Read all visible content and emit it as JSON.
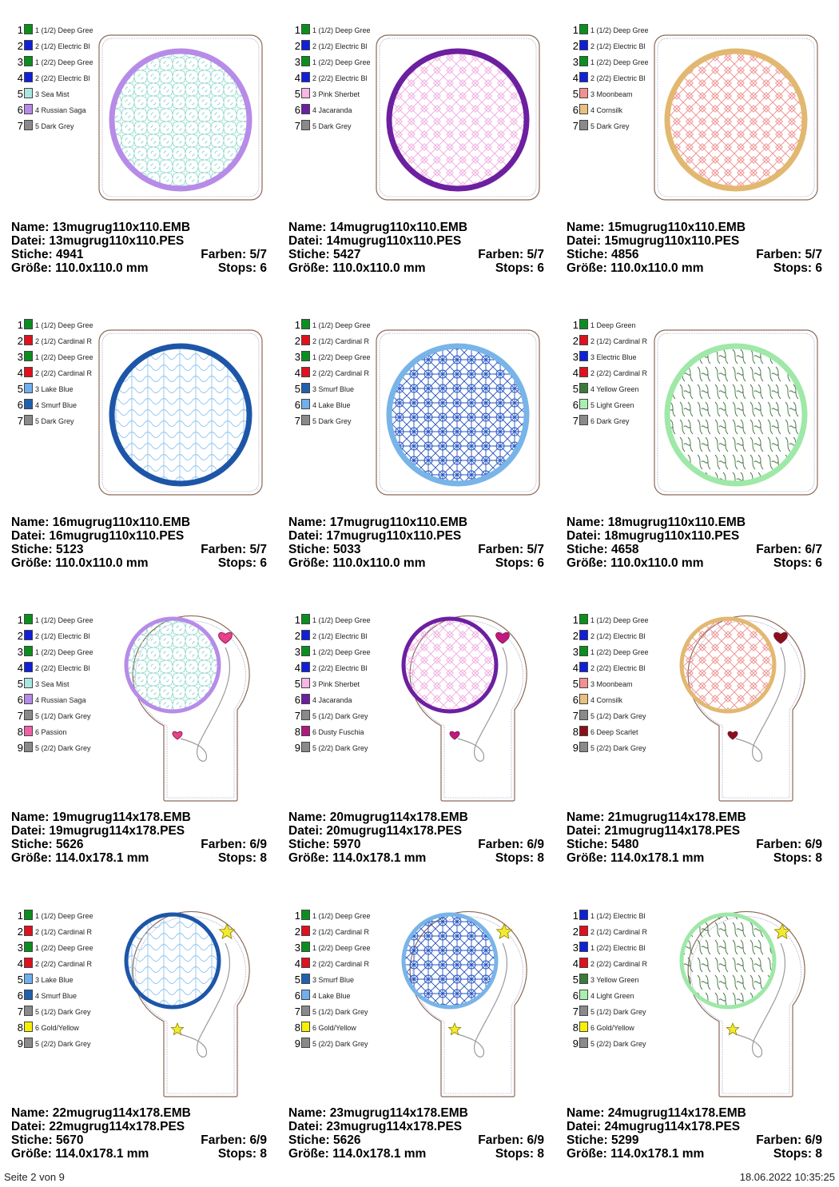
{
  "labels": {
    "name": "Name:",
    "file": "Datei:",
    "stitches": "Stiche:",
    "colors": "Farben:",
    "size": "Größe:",
    "stops": "Stops:"
  },
  "footer": {
    "page": "Seite 2 von 9",
    "datetime": "18.06.2022 10:35:25"
  },
  "designs": [
    {
      "name": "13mugrug110x110.EMB",
      "file": "13mugrug110x110.PES",
      "stitches": "4941",
      "colors": "5/7",
      "size": "110.0x110.0 mm",
      "stops": "6",
      "shape": "square",
      "pattern": "stars",
      "ring": "#b78be8",
      "fill": "#8fd8cc",
      "ornament": null,
      "thread_list": [
        {
          "name": "1 (1/2) Deep Gree",
          "color": "#0a8f1f"
        },
        {
          "name": "2 (1/2) Electric Bl",
          "color": "#1020d8"
        },
        {
          "name": "1 (2/2) Deep Gree",
          "color": "#0a8f1f"
        },
        {
          "name": "2 (2/2) Electric Bl",
          "color": "#1020d8"
        },
        {
          "name": "3 Sea Mist",
          "color": "#a8e8e0"
        },
        {
          "name": "4 Russian Saga",
          "color": "#b78be8"
        },
        {
          "name": "5 Dark Grey",
          "color": "#8a8a8a"
        }
      ]
    },
    {
      "name": "14mugrug110x110.EMB",
      "file": "14mugrug110x110.PES",
      "stitches": "5427",
      "colors": "5/7",
      "size": "110.0x110.0 mm",
      "stops": "6",
      "shape": "square",
      "pattern": "lattice",
      "ring": "#6c1fa0",
      "fill": "#f0a8e0",
      "ornament": null,
      "thread_list": [
        {
          "name": "1 (1/2) Deep Gree",
          "color": "#0a8f1f"
        },
        {
          "name": "2 (1/2) Electric Bl",
          "color": "#1020d8"
        },
        {
          "name": "1 (2/2) Deep Gree",
          "color": "#0a8f1f"
        },
        {
          "name": "2 (2/2) Electric Bl",
          "color": "#1020d8"
        },
        {
          "name": "3 Pink Sherbet",
          "color": "#f7b6e6"
        },
        {
          "name": "4 Jacaranda",
          "color": "#6c1fa0"
        },
        {
          "name": "5 Dark Grey",
          "color": "#8a8a8a"
        }
      ]
    },
    {
      "name": "15mugrug110x110.EMB",
      "file": "15mugrug110x110.PES",
      "stitches": "4856",
      "colors": "5/7",
      "size": "110.0x110.0 mm",
      "stops": "6",
      "shape": "square",
      "pattern": "lattice",
      "ring": "#e2b870",
      "fill": "#ef8a8a",
      "ornament": null,
      "thread_list": [
        {
          "name": "1 (1/2) Deep Gree",
          "color": "#0a8f1f"
        },
        {
          "name": "2 (1/2) Electric Bl",
          "color": "#1020d8"
        },
        {
          "name": "1 (2/2) Deep Gree",
          "color": "#0a8f1f"
        },
        {
          "name": "2 (2/2) Electric Bl",
          "color": "#1020d8"
        },
        {
          "name": "3 Moonbeam",
          "color": "#f29090"
        },
        {
          "name": "4 Cornsilk",
          "color": "#e8c080"
        },
        {
          "name": "5 Dark Grey",
          "color": "#8a8a8a"
        }
      ]
    },
    {
      "name": "16mugrug110x110.EMB",
      "file": "16mugrug110x110.PES",
      "stitches": "5123",
      "colors": "5/7",
      "size": "110.0x110.0 mm",
      "stops": "6",
      "shape": "square",
      "pattern": "waves",
      "ring": "#1d56a8",
      "fill": "#8ec4ee",
      "ornament": null,
      "thread_list": [
        {
          "name": "1 (1/2) Deep Gree",
          "color": "#0a8f1f"
        },
        {
          "name": "2 (1/2) Cardinal R",
          "color": "#e0101c"
        },
        {
          "name": "1 (2/2) Deep Gree",
          "color": "#0a8f1f"
        },
        {
          "name": "2 (2/2) Cardinal R",
          "color": "#e0101c"
        },
        {
          "name": "3 Lake Blue",
          "color": "#70b0ee"
        },
        {
          "name": "4 Smurf Blue",
          "color": "#2060b0"
        },
        {
          "name": "5 Dark Grey",
          "color": "#8a8a8a"
        }
      ]
    },
    {
      "name": "17mugrug110x110.EMB",
      "file": "17mugrug110x110.PES",
      "stitches": "5033",
      "colors": "5/7",
      "size": "110.0x110.0 mm",
      "stops": "6",
      "shape": "square",
      "pattern": "geo",
      "ring": "#78b4e8",
      "fill": "#2050c0",
      "ornament": null,
      "thread_list": [
        {
          "name": "1 (1/2) Deep Gree",
          "color": "#0a8f1f"
        },
        {
          "name": "2 (1/2) Cardinal R",
          "color": "#e0101c"
        },
        {
          "name": "1 (2/2) Deep Gree",
          "color": "#0a8f1f"
        },
        {
          "name": "2 (2/2) Cardinal R",
          "color": "#e0101c"
        },
        {
          "name": "3 Smurf Blue",
          "color": "#2060b0"
        },
        {
          "name": "4 Lake Blue",
          "color": "#70b0ee"
        },
        {
          "name": "5 Dark Grey",
          "color": "#8a8a8a"
        }
      ]
    },
    {
      "name": "18mugrug110x110.EMB",
      "file": "18mugrug110x110.PES",
      "stitches": "4658",
      "colors": "6/7",
      "size": "110.0x110.0 mm",
      "stops": "6",
      "shape": "square",
      "pattern": "squiggle",
      "ring": "#9ee8a8",
      "fill": "#3a6e3a",
      "ornament": null,
      "thread_list": [
        {
          "name": "1 Deep Green",
          "color": "#0a8f1f"
        },
        {
          "name": "2 (1/2) Cardinal R",
          "color": "#e0101c"
        },
        {
          "name": "3 Electric Blue",
          "color": "#1020d8"
        },
        {
          "name": "2 (2/2) Cardinal R",
          "color": "#e0101c"
        },
        {
          "name": "4 Yellow Green",
          "color": "#3a7a3a"
        },
        {
          "name": "5 Light Green",
          "color": "#a8f0b0"
        },
        {
          "name": "6 Dark Grey",
          "color": "#8a8a8a"
        }
      ]
    },
    {
      "name": "19mugrug114x178.EMB",
      "file": "19mugrug114x178.PES",
      "stitches": "5626",
      "colors": "6/9",
      "size": "114.0x178.1 mm",
      "stops": "8",
      "shape": "tall",
      "pattern": "stars",
      "ring": "#b78be8",
      "fill": "#8fd8cc",
      "ornament": "heart",
      "ornament_color": "#e8408a",
      "thread_list": [
        {
          "name": "1 (1/2) Deep Gree",
          "color": "#0a8f1f"
        },
        {
          "name": "2 (1/2) Electric Bl",
          "color": "#1020d8"
        },
        {
          "name": "1 (2/2) Deep Gree",
          "color": "#0a8f1f"
        },
        {
          "name": "2 (2/2) Electric Bl",
          "color": "#1020d8"
        },
        {
          "name": "3 Sea Mist",
          "color": "#a8e8e0"
        },
        {
          "name": "4 Russian Saga",
          "color": "#b78be8"
        },
        {
          "name": "5 (1/2) Dark Grey",
          "color": "#8a8a8a"
        },
        {
          "name": "6 Passion",
          "color": "#f060a8"
        },
        {
          "name": "5 (2/2) Dark Grey",
          "color": "#8a8a8a"
        }
      ]
    },
    {
      "name": "20mugrug114x178.EMB",
      "file": "20mugrug114x178.PES",
      "stitches": "5970",
      "colors": "6/9",
      "size": "114.0x178.1 mm",
      "stops": "8",
      "shape": "tall",
      "pattern": "lattice",
      "ring": "#6c1fa0",
      "fill": "#f0a8e0",
      "ornament": "heart",
      "ornament_color": "#c01880",
      "thread_list": [
        {
          "name": "1 (1/2) Deep Gree",
          "color": "#0a8f1f"
        },
        {
          "name": "2 (1/2) Electric Bl",
          "color": "#1020d8"
        },
        {
          "name": "1 (2/2) Deep Gree",
          "color": "#0a8f1f"
        },
        {
          "name": "2 (2/2) Electric Bl",
          "color": "#1020d8"
        },
        {
          "name": "3 Pink Sherbet",
          "color": "#f7b6e6"
        },
        {
          "name": "4 Jacaranda",
          "color": "#6c1fa0"
        },
        {
          "name": "5 (1/2) Dark Grey",
          "color": "#8a8a8a"
        },
        {
          "name": "6 Dusty Fuschia",
          "color": "#b01880"
        },
        {
          "name": "5 (2/2) Dark Grey",
          "color": "#8a8a8a"
        }
      ]
    },
    {
      "name": "21mugrug114x178.EMB",
      "file": "21mugrug114x178.PES",
      "stitches": "5480",
      "colors": "6/9",
      "size": "114.0x178.1 mm",
      "stops": "8",
      "shape": "tall",
      "pattern": "lattice",
      "ring": "#e2b870",
      "fill": "#ef8a8a",
      "ornament": "heart",
      "ornament_color": "#8a1018",
      "thread_list": [
        {
          "name": "1 (1/2) Deep Gree",
          "color": "#0a8f1f"
        },
        {
          "name": "2 (1/2) Electric Bl",
          "color": "#1020d8"
        },
        {
          "name": "1 (2/2) Deep Gree",
          "color": "#0a8f1f"
        },
        {
          "name": "2 (2/2) Electric Bl",
          "color": "#1020d8"
        },
        {
          "name": "3 Moonbeam",
          "color": "#f29090"
        },
        {
          "name": "4 Cornsilk",
          "color": "#e8c080"
        },
        {
          "name": "5 (1/2) Dark Grey",
          "color": "#8a8a8a"
        },
        {
          "name": "6 Deep Scarlet",
          "color": "#8a1018"
        },
        {
          "name": "5 (2/2) Dark Grey",
          "color": "#8a8a8a"
        }
      ]
    },
    {
      "name": "22mugrug114x178.EMB",
      "file": "22mugrug114x178.PES",
      "stitches": "5670",
      "colors": "6/9",
      "size": "114.0x178.1 mm",
      "stops": "8",
      "shape": "tall",
      "pattern": "waves",
      "ring": "#1d56a8",
      "fill": "#8ec4ee",
      "ornament": "star",
      "ornament_color": "#f2ea30",
      "thread_list": [
        {
          "name": "1 (1/2) Deep Gree",
          "color": "#0a8f1f"
        },
        {
          "name": "2 (1/2) Cardinal R",
          "color": "#e0101c"
        },
        {
          "name": "1 (2/2) Deep Gree",
          "color": "#0a8f1f"
        },
        {
          "name": "2 (2/2) Cardinal R",
          "color": "#e0101c"
        },
        {
          "name": "3 Lake Blue",
          "color": "#70b0ee"
        },
        {
          "name": "4 Smurf Blue",
          "color": "#2060b0"
        },
        {
          "name": "5 (1/2) Dark Grey",
          "color": "#8a8a8a"
        },
        {
          "name": "6 Gold/Yellow",
          "color": "#f8f000"
        },
        {
          "name": "5 (2/2) Dark Grey",
          "color": "#8a8a8a"
        }
      ]
    },
    {
      "name": "23mugrug114x178.EMB",
      "file": "23mugrug114x178.PES",
      "stitches": "5626",
      "colors": "6/9",
      "size": "114.0x178.1 mm",
      "stops": "8",
      "shape": "tall",
      "pattern": "geo",
      "ring": "#78b4e8",
      "fill": "#2050c0",
      "ornament": "star",
      "ornament_color": "#f2ea30",
      "thread_list": [
        {
          "name": "1 (1/2) Deep Gree",
          "color": "#0a8f1f"
        },
        {
          "name": "2 (1/2) Cardinal R",
          "color": "#e0101c"
        },
        {
          "name": "1 (2/2) Deep Gree",
          "color": "#0a8f1f"
        },
        {
          "name": "2 (2/2) Cardinal R",
          "color": "#e0101c"
        },
        {
          "name": "3 Smurf Blue",
          "color": "#2060b0"
        },
        {
          "name": "4 Lake Blue",
          "color": "#70b0ee"
        },
        {
          "name": "5 (1/2) Dark Grey",
          "color": "#8a8a8a"
        },
        {
          "name": "6 Gold/Yellow",
          "color": "#f8f000"
        },
        {
          "name": "5 (2/2) Dark Grey",
          "color": "#8a8a8a"
        }
      ]
    },
    {
      "name": "24mugrug114x178.EMB",
      "file": "24mugrug114x178.PES",
      "stitches": "5299",
      "colors": "6/9",
      "size": "114.0x178.1 mm",
      "stops": "8",
      "shape": "tall",
      "pattern": "squiggle",
      "ring": "#9ee8a8",
      "fill": "#3a6e3a",
      "ornament": "star",
      "ornament_color": "#f2ea30",
      "thread_list": [
        {
          "name": "1 (1/2) Electric Bl",
          "color": "#1020d8"
        },
        {
          "name": "2 (1/2) Cardinal R",
          "color": "#e0101c"
        },
        {
          "name": "1 (2/2) Electric Bl",
          "color": "#1020d8"
        },
        {
          "name": "2 (2/2) Cardinal R",
          "color": "#e0101c"
        },
        {
          "name": "3 Yellow Green",
          "color": "#3a7a3a"
        },
        {
          "name": "4 Light Green",
          "color": "#a8f0b0"
        },
        {
          "name": "5 (1/2) Dark Grey",
          "color": "#8a8a8a"
        },
        {
          "name": "6 Gold/Yellow",
          "color": "#f8f000"
        },
        {
          "name": "5 (2/2) Dark Grey",
          "color": "#8a8a8a"
        }
      ]
    }
  ]
}
